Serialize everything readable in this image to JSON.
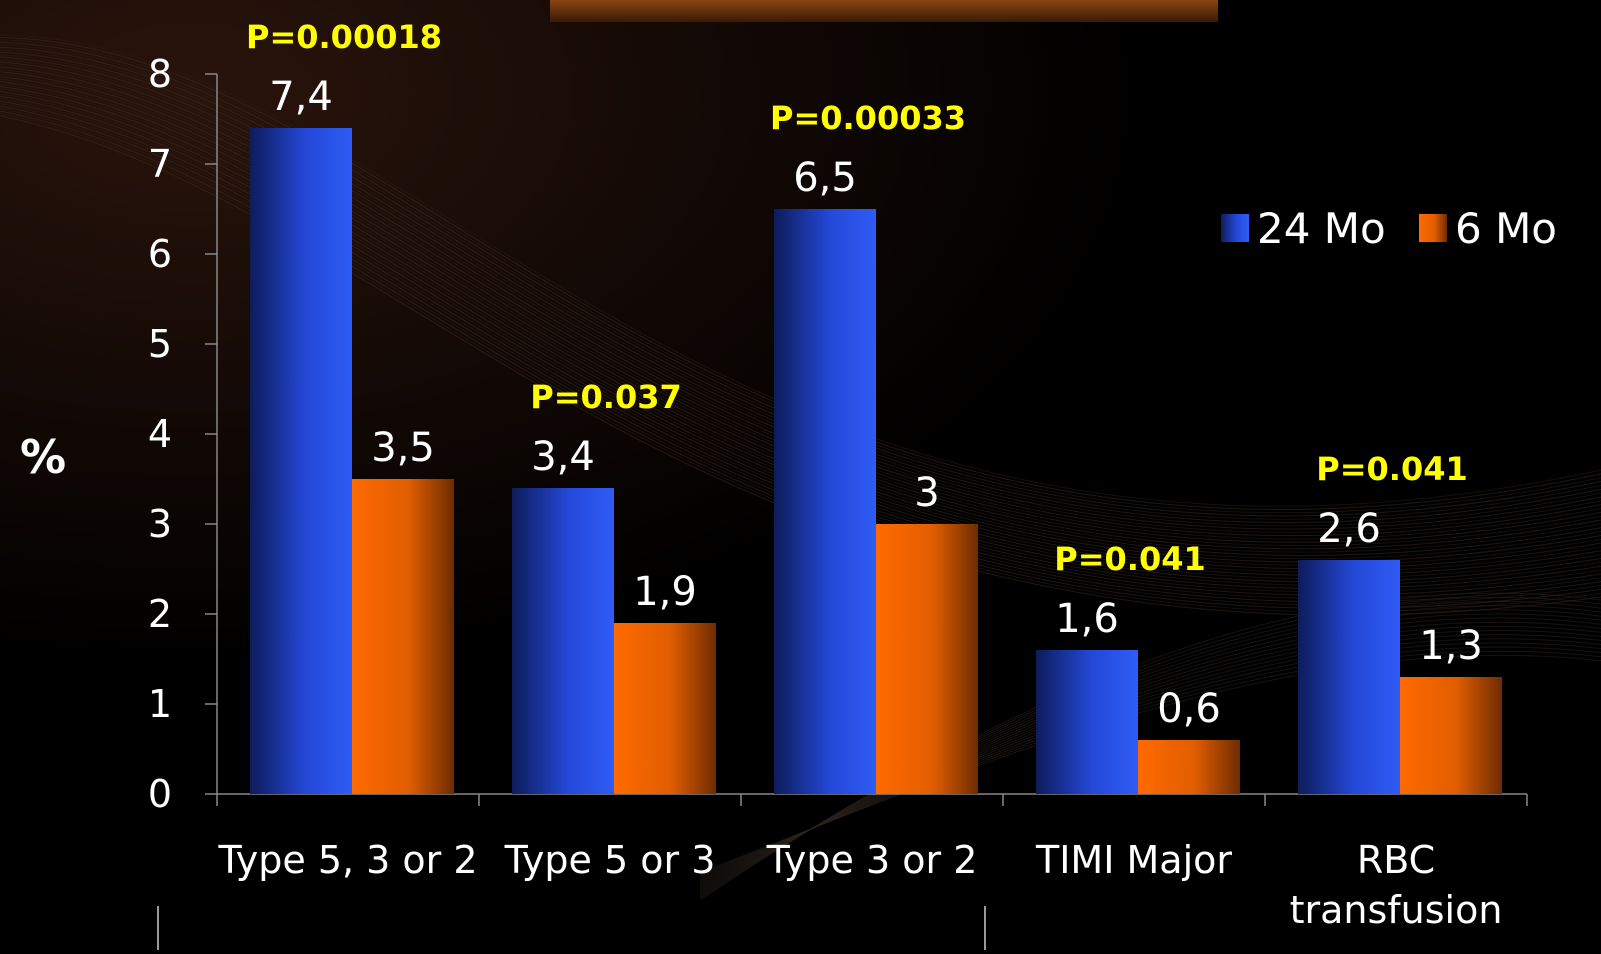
{
  "chart_data": {
    "type": "bar",
    "title": "",
    "xlabel": "",
    "ylabel": "%",
    "ylim": [
      0,
      8
    ],
    "yticks": [
      "0",
      "1",
      "2",
      "3",
      "4",
      "5",
      "6",
      "7",
      "8"
    ],
    "categories": [
      [
        "Type 5, 3 or 2"
      ],
      [
        "Type 5 or 3"
      ],
      [
        "Type 3 or 2"
      ],
      [
        "TIMI Major"
      ],
      [
        "RBC",
        "transfusion"
      ]
    ],
    "series": [
      {
        "name": "24 Mo",
        "values": [
          7.4,
          3.4,
          6.5,
          1.6,
          2.6
        ],
        "labels": [
          "7,4",
          "3,4",
          "6,5",
          "1,6",
          "2,6"
        ],
        "color": "#2f5cf5"
      },
      {
        "name": "6 Mo",
        "values": [
          3.5,
          1.9,
          3.0,
          0.6,
          1.3
        ],
        "labels": [
          "3,5",
          "1,9",
          "3",
          "0,6",
          "1,3"
        ],
        "color": "#ff6a00"
      }
    ],
    "p_values": [
      "P=0.00018",
      "P=0.037",
      "P=0.00033",
      "P=0.041",
      "P=0.041"
    ],
    "legend_position": "top-right",
    "grid": false,
    "colors": {
      "background": "#000000",
      "text": "#ffffff",
      "p_value": "#ffff00",
      "axis": "#888888",
      "header_bar": "#7a3a10"
    }
  }
}
